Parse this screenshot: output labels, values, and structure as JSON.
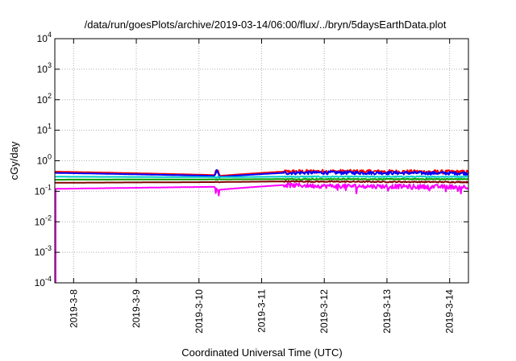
{
  "chart_data": {
    "type": "line",
    "title": "/data/run/goesPlots/archive/2019-03-14/06:00/flux/../bryn/5daysEarthData.plot",
    "xlabel": "Coordinated Universal Time (UTC)",
    "ylabel": "cGy/day",
    "y_scale": "log",
    "ylim": [
      0.0001,
      10000
    ],
    "xlim_days": [
      -0.3,
      6.3
    ],
    "grid": true,
    "y_ticks": [
      {
        "value": 0.0001,
        "base": "10",
        "exp": "-4"
      },
      {
        "value": 0.001,
        "base": "10",
        "exp": "-3"
      },
      {
        "value": 0.01,
        "base": "10",
        "exp": "-2"
      },
      {
        "value": 0.1,
        "base": "10",
        "exp": "-1"
      },
      {
        "value": 1,
        "base": "10",
        "exp": "0"
      },
      {
        "value": 10,
        "base": "10",
        "exp": "1"
      },
      {
        "value": 100,
        "base": "10",
        "exp": "2"
      },
      {
        "value": 1000,
        "base": "10",
        "exp": "3"
      },
      {
        "value": 10000,
        "base": "10",
        "exp": "4"
      }
    ],
    "x_ticks": [
      {
        "label": "2019-3-8",
        "day": 0
      },
      {
        "label": "2019-3-9",
        "day": 1
      },
      {
        "label": "2019-3-10",
        "day": 2
      },
      {
        "label": "2019-3-11",
        "day": 3
      },
      {
        "label": "2019-3-12",
        "day": 4
      },
      {
        "label": "2019-3-13",
        "day": 5
      },
      {
        "label": "2019-3-14",
        "day": 6
      }
    ],
    "series": [
      {
        "color": "#ff0000",
        "points": [
          [
            -0.3,
            0.44
          ],
          [
            2.25,
            0.34
          ],
          [
            2.28,
            0.52
          ],
          [
            2.33,
            0.32
          ],
          [
            3.35,
            0.44
          ],
          [
            4.0,
            0.45
          ],
          [
            6.3,
            0.43
          ]
        ],
        "noise": 0.14
      },
      {
        "color": "#0000ff",
        "points": [
          [
            -0.3,
            0.4
          ],
          [
            2.25,
            0.32
          ],
          [
            2.28,
            0.46
          ],
          [
            2.33,
            0.3
          ],
          [
            3.35,
            0.4
          ],
          [
            4.0,
            0.41
          ],
          [
            6.3,
            0.39
          ]
        ],
        "noise": 0.12
      },
      {
        "color": "#00cccc",
        "points": [
          [
            -0.3,
            0.3
          ],
          [
            2.25,
            0.29
          ],
          [
            2.33,
            0.29
          ],
          [
            3.35,
            0.3
          ],
          [
            6.3,
            0.3
          ]
        ],
        "noise": 0.04
      },
      {
        "color": "#00a000",
        "points": [
          [
            -0.3,
            0.24
          ],
          [
            2.25,
            0.245
          ],
          [
            3.35,
            0.25
          ],
          [
            6.3,
            0.25
          ]
        ],
        "noise": 0.03
      },
      {
        "color": "#800000",
        "points": [
          [
            -0.3,
            0.19
          ],
          [
            2.25,
            0.2
          ],
          [
            3.35,
            0.21
          ],
          [
            6.3,
            0.2
          ]
        ],
        "noise": 0.04
      },
      {
        "color": "#ff00ff",
        "points": [
          [
            -0.3,
            0.12
          ],
          [
            2.25,
            0.14
          ],
          [
            2.28,
            0.11
          ],
          [
            3.35,
            0.16
          ],
          [
            4.0,
            0.15
          ],
          [
            6.3,
            0.14
          ]
        ],
        "noise": 0.16
      }
    ]
  }
}
